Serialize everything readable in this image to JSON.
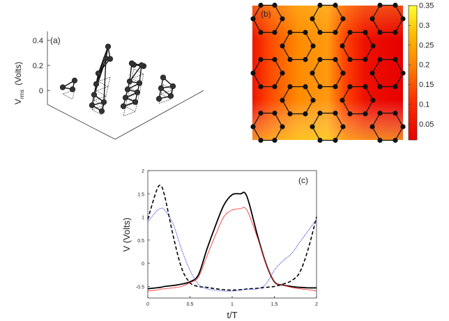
{
  "chart_data": [
    {
      "type": "scatter",
      "panel_label": "(a)",
      "zlabel": "V",
      "zlabel_sub": "rms",
      "zlabel_unit": "(Volts)",
      "z_ticks": [
        "0.4",
        "0.2",
        "0"
      ],
      "zlim": [
        0,
        0.45
      ]
    },
    {
      "type": "heatmap",
      "panel_label": "(b)",
      "colorbar_ticks": [
        "0.35",
        "0.3",
        "0.25",
        "0.2",
        "0.15",
        "0.1",
        "0.05"
      ],
      "colorbar_range": [
        0.01,
        0.35
      ],
      "colormap": [
        "#e60000",
        "#ff4000",
        "#ff8000",
        "#ffc000",
        "#ffff33"
      ]
    },
    {
      "type": "line",
      "panel_label": "(c)",
      "xlabel": "t/T",
      "ylabel": "V (Volts)",
      "xlim": [
        0,
        2
      ],
      "ylim": [
        -0.75,
        2
      ],
      "x_ticks": [
        "0",
        "0.5",
        "1",
        "1.5",
        "2"
      ],
      "y_ticks": [
        "2",
        "1.5",
        "1",
        "0.5",
        "0",
        "-0.5"
      ],
      "x": [
        0.0,
        0.1,
        0.15,
        0.2,
        0.3,
        0.4,
        0.5,
        0.6,
        0.7,
        0.8,
        0.9,
        1.0,
        1.1,
        1.15,
        1.2,
        1.3,
        1.4,
        1.5,
        1.6,
        1.7,
        1.8,
        1.9,
        2.0
      ],
      "series": [
        {
          "color": "#000000",
          "dash": "solid",
          "values": [
            -0.55,
            -0.53,
            -0.52,
            -0.5,
            -0.48,
            -0.45,
            -0.4,
            -0.25,
            0.3,
            0.8,
            1.25,
            1.48,
            1.5,
            1.52,
            1.3,
            0.6,
            0.0,
            -0.4,
            -0.47,
            -0.5,
            -0.52,
            -0.53,
            -0.53
          ]
        },
        {
          "color": "#000000",
          "dash": "dashed",
          "values": [
            0.95,
            1.55,
            1.68,
            1.45,
            0.6,
            -0.1,
            -0.42,
            -0.5,
            -0.52,
            -0.55,
            -0.57,
            -0.58,
            -0.57,
            -0.56,
            -0.55,
            -0.54,
            -0.52,
            -0.5,
            -0.45,
            -0.38,
            -0.2,
            0.3,
            1.0
          ]
        },
        {
          "color": "#2233dd",
          "dash": "dotted",
          "values": [
            0.9,
            1.12,
            1.18,
            1.15,
            0.85,
            0.3,
            -0.15,
            -0.45,
            -0.55,
            -0.58,
            -0.6,
            -0.6,
            -0.58,
            -0.56,
            -0.56,
            -0.55,
            -0.45,
            -0.15,
            0.05,
            0.2,
            0.45,
            0.7,
            0.95
          ]
        },
        {
          "color": "#ff2222",
          "dash": "thin",
          "values": [
            -0.6,
            -0.58,
            -0.56,
            -0.55,
            -0.53,
            -0.5,
            -0.42,
            -0.3,
            0.15,
            0.6,
            1.0,
            1.15,
            1.18,
            1.2,
            1.05,
            0.55,
            0.0,
            -0.4,
            -0.47,
            -0.52,
            -0.55,
            -0.57,
            -0.6
          ]
        }
      ]
    }
  ]
}
